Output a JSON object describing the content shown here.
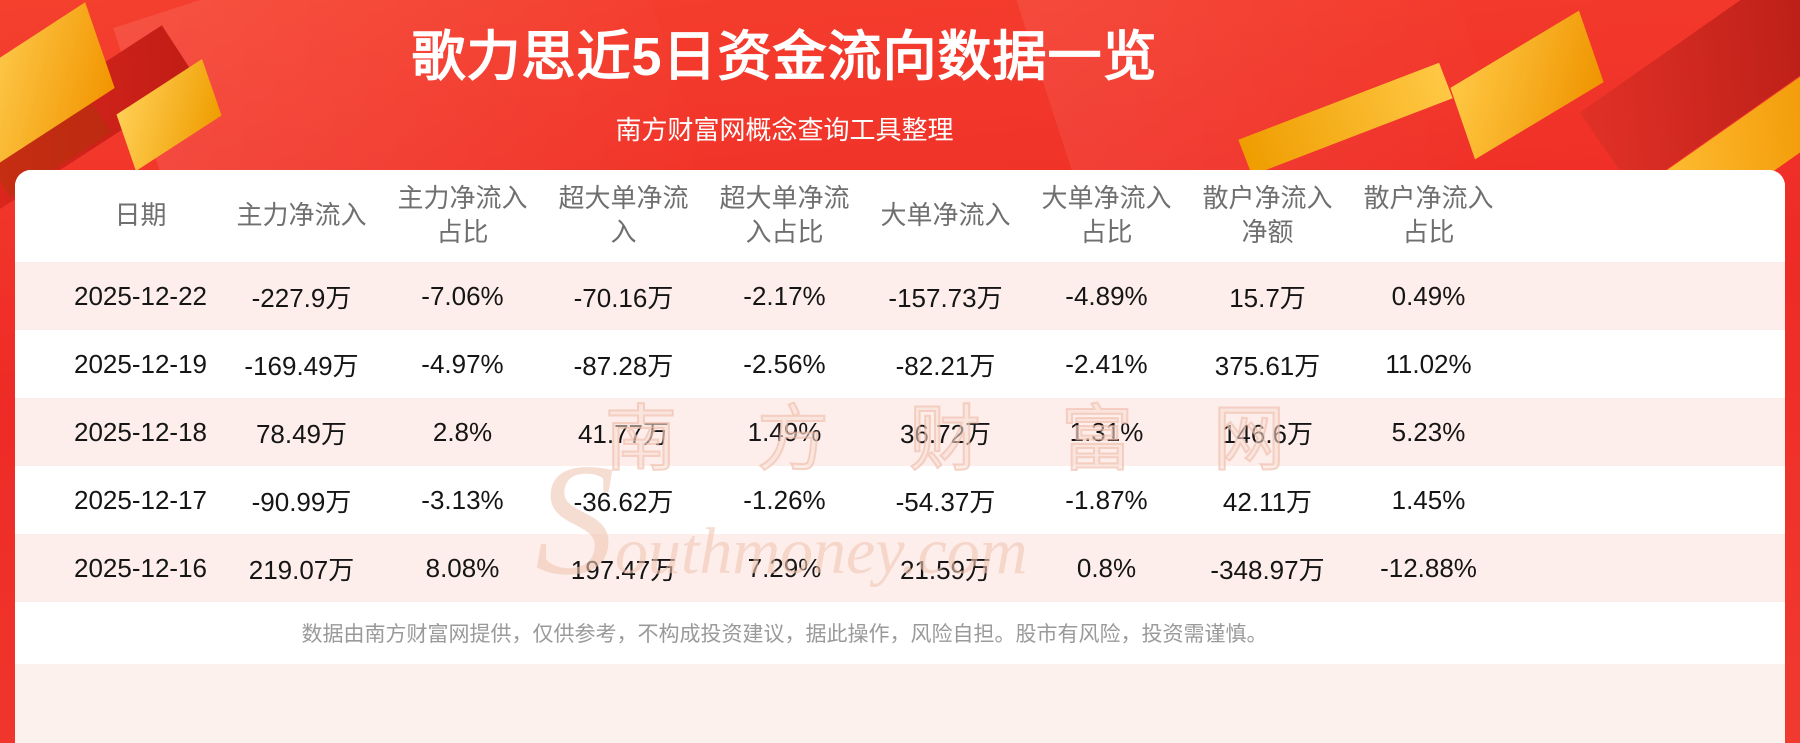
{
  "banner": {
    "title": "歌力思近5日资金流向数据一览",
    "subtitle": "南方财富网概念查询工具整理"
  },
  "chart_data": {
    "type": "table",
    "title": "歌力思近5日资金流向数据一览",
    "columns": [
      "日期",
      "主力净流入",
      "主力净流入占比",
      "超大单净流入",
      "超大单净流入占比",
      "大单净流入",
      "大单净流入占比",
      "散户净流入净额",
      "散户净流入占比"
    ],
    "rows": [
      [
        "2025-12-22",
        "-227.9万",
        "-7.06%",
        "-70.16万",
        "-2.17%",
        "-157.73万",
        "-4.89%",
        "15.7万",
        "0.49%"
      ],
      [
        "2025-12-19",
        "-169.49万",
        "-4.97%",
        "-87.28万",
        "-2.56%",
        "-82.21万",
        "-2.41%",
        "375.61万",
        "11.02%"
      ],
      [
        "2025-12-18",
        "78.49万",
        "2.8%",
        "41.77万",
        "1.49%",
        "36.72万",
        "1.31%",
        "146.6万",
        "5.23%"
      ],
      [
        "2025-12-17",
        "-90.99万",
        "-3.13%",
        "-36.62万",
        "-1.26%",
        "-54.37万",
        "-1.87%",
        "42.11万",
        "1.45%"
      ],
      [
        "2025-12-16",
        "219.07万",
        "8.08%",
        "197.47万",
        "7.29%",
        "21.59万",
        "0.8%",
        "-348.97万",
        "-12.88%"
      ]
    ]
  },
  "watermark": {
    "cn": "南 方 财 富 网",
    "en": "Southmoney.com"
  },
  "footer": {
    "note": "数据由南方财富网提供，仅供参考，不构成投资建议，据此操作，风险自担。股市有风险，投资需谨慎。"
  },
  "colors": {
    "banner_red": "#f23a2c",
    "dark_red_ribbon": "#d7251c",
    "gold": "#f7a600",
    "row_pink": "#fdeeeb",
    "header_text": "#6f6f6f",
    "body_text": "#151515",
    "footer_text": "#9a9a9a"
  }
}
